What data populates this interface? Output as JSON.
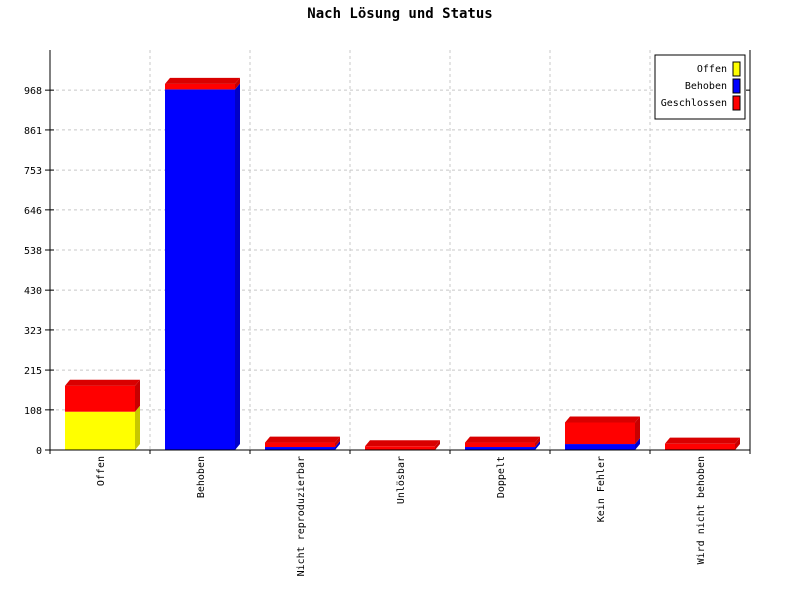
{
  "chart_data": {
    "type": "bar",
    "stacked": true,
    "title": "Nach Lösung und Status",
    "xlabel": "",
    "ylabel": "",
    "categories": [
      "Offen",
      "Behoben",
      "Nicht reproduzierbar",
      "Unlösbar",
      "Doppelt",
      "Kein Fehler",
      "Wird nicht behoben"
    ],
    "series": [
      {
        "name": "Offen",
        "color": "#ffff00",
        "values": [
          103,
          0,
          0,
          0,
          0,
          0,
          0
        ]
      },
      {
        "name": "Behoben",
        "color": "#0000ff",
        "values": [
          0,
          970,
          8,
          0,
          8,
          16,
          0
        ]
      },
      {
        "name": "Geschlossen",
        "color": "#ff0000",
        "values": [
          70,
          15,
          12,
          10,
          12,
          58,
          17
        ]
      }
    ],
    "yticks": [
      0,
      108,
      215,
      323,
      430,
      538,
      646,
      753,
      861,
      968
    ],
    "ylim": [
      0,
      1076
    ],
    "grid": true,
    "legend_position": "top-right"
  }
}
